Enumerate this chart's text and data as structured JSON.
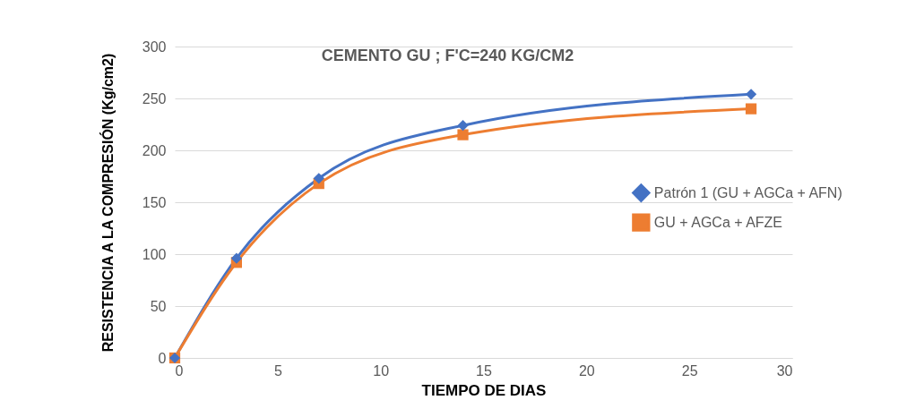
{
  "chart_data": {
    "type": "line",
    "title": "CEMENTO GU ; F'C=240 KG/CM2",
    "xlabel": "TIEMPO DE DIAS",
    "ylabel": "RESISTENCIA A LA COMPRESIÓN (Kg/cm2)",
    "x": [
      0,
      3,
      7,
      14,
      28
    ],
    "series": [
      {
        "name": "Patrón 1 (GU + AGCa + AFN)",
        "color": "#4472c4",
        "marker": "diamond",
        "values": [
          0,
          96,
          173,
          224,
          254
        ]
      },
      {
        "name": "GU + AGCa + AFZE",
        "color": "#ed7d31",
        "marker": "square",
        "values": [
          0,
          92,
          168,
          215,
          240
        ]
      }
    ],
    "xlim": [
      0,
      30
    ],
    "xticks": [
      0,
      5,
      10,
      15,
      20,
      25,
      30
    ],
    "ylim": [
      0,
      300
    ],
    "yticks": [
      0,
      50,
      100,
      150,
      200,
      250,
      300
    ],
    "grid": "y",
    "legend": "right"
  }
}
